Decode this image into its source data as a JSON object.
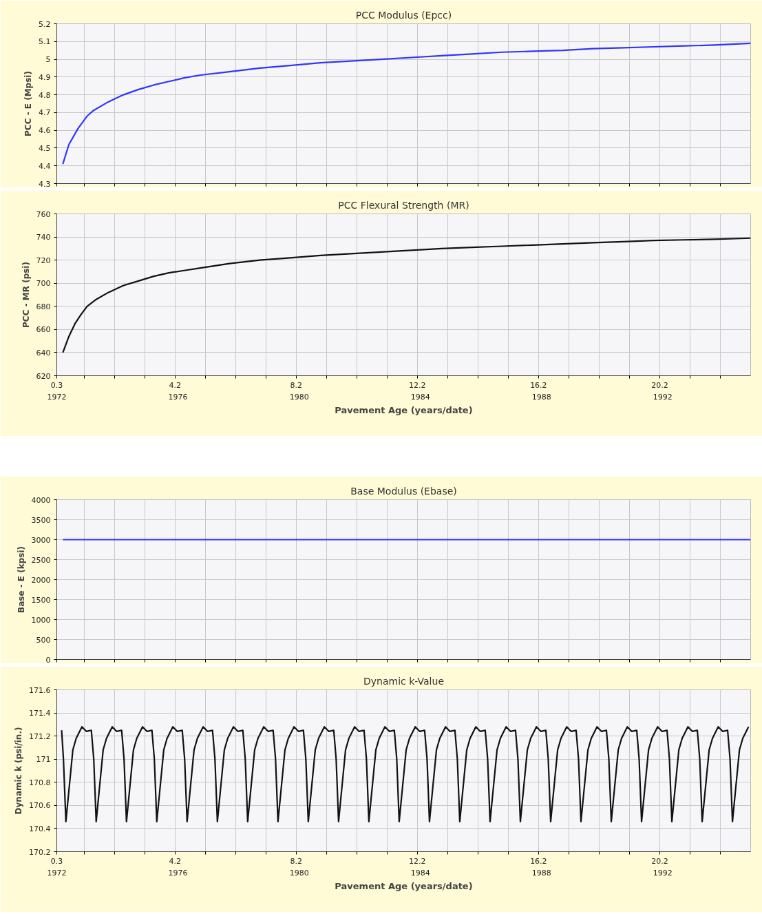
{
  "chart_data": [
    {
      "type": "line",
      "title": "PCC Modulus (Epcc)",
      "ylabel": "PCC - E (Mpsi)",
      "tick_labels": "y",
      "grid": true,
      "xlim": [
        0.3,
        23.2
      ],
      "ylim": [
        4.3,
        5.2
      ],
      "yticks": [
        4.3,
        4.4,
        4.5,
        4.6,
        4.7,
        4.8,
        4.9,
        5,
        5.1,
        5.2
      ],
      "xticks": [
        0.3,
        {
          "value": 1.2,
          "label": null
        },
        {
          "value": 2.2,
          "label": null
        },
        {
          "value": 3.2,
          "label": null
        },
        4.2,
        {
          "value": 5.2,
          "label": null
        },
        {
          "value": 6.2,
          "label": null
        },
        {
          "value": 7.2,
          "label": null
        },
        8.2,
        {
          "value": 9.2,
          "label": null
        },
        {
          "value": 10.2,
          "label": null
        },
        {
          "value": 11.2,
          "label": null
        },
        12.2,
        {
          "value": 13.2,
          "label": null
        },
        {
          "value": 14.2,
          "label": null
        },
        {
          "value": 15.2,
          "label": null
        },
        16.2,
        {
          "value": 17.2,
          "label": null
        },
        {
          "value": 18.2,
          "label": null
        },
        {
          "value": 19.2,
          "label": null
        },
        20.2,
        {
          "value": 21.2,
          "label": null
        },
        {
          "value": 22.2,
          "label": null
        }
      ],
      "x": [
        0.5,
        0.7,
        1.0,
        1.3,
        1.5,
        2.0,
        2.5,
        3.0,
        3.5,
        4.0,
        4.5,
        5.0,
        6,
        7,
        8,
        9,
        10,
        11,
        12,
        13,
        14,
        15,
        16,
        17,
        18,
        19,
        20,
        21,
        22,
        23.2
      ],
      "series": [
        {
          "color": "#3333ff",
          "values": [
            4.41,
            4.52,
            4.61,
            4.68,
            4.71,
            4.76,
            4.8,
            4.83,
            4.855,
            4.875,
            4.895,
            4.91,
            4.93,
            4.95,
            4.965,
            4.98,
            4.99,
            5.0,
            5.01,
            5.02,
            5.03,
            5.04,
            5.045,
            5.05,
            5.06,
            5.065,
            5.07,
            5.075,
            5.08,
            5.09
          ]
        }
      ]
    },
    {
      "type": "line",
      "title": "PCC Flexural Strength (MR)",
      "ylabel": "PCC - MR (psi)",
      "xlabel": "Pavement Age (years/date)",
      "grid": true,
      "xlim": [
        0.3,
        23.2
      ],
      "ylim": [
        620,
        760
      ],
      "yticks": [
        620,
        640,
        660,
        680,
        700,
        720,
        740,
        760
      ],
      "xticks": [
        0.3,
        {
          "value": 1.2,
          "label": null
        },
        {
          "value": 2.2,
          "label": null
        },
        {
          "value": 3.2,
          "label": null
        },
        4.2,
        {
          "value": 5.2,
          "label": null
        },
        {
          "value": 6.2,
          "label": null
        },
        {
          "value": 7.2,
          "label": null
        },
        8.2,
        {
          "value": 9.2,
          "label": null
        },
        {
          "value": 10.2,
          "label": null
        },
        {
          "value": 11.2,
          "label": null
        },
        12.2,
        {
          "value": 13.2,
          "label": null
        },
        {
          "value": 14.2,
          "label": null
        },
        {
          "value": 15.2,
          "label": null
        },
        16.2,
        {
          "value": 17.2,
          "label": null
        },
        {
          "value": 18.2,
          "label": null
        },
        {
          "value": 19.2,
          "label": null
        },
        20.2,
        {
          "value": 21.2,
          "label": null
        },
        {
          "value": 22.2,
          "label": null
        }
      ],
      "x2lim": [
        1972,
        1994.9
      ],
      "x2ticks": [
        1972,
        1976,
        1980,
        1984,
        1988,
        1992
      ],
      "x": [
        0.5,
        0.7,
        0.9,
        1.1,
        1.3,
        1.6,
        2.0,
        2.5,
        3.0,
        3.5,
        4.0,
        4.5,
        5.0,
        6,
        7,
        8,
        9,
        10,
        11,
        12,
        13,
        14,
        15,
        16,
        17,
        18,
        19,
        20,
        21,
        22,
        23.2
      ],
      "series": [
        {
          "color": "#111111",
          "values": [
            640,
            654,
            665,
            673,
            680,
            686,
            692,
            698,
            702,
            706,
            709,
            711,
            713,
            717,
            720,
            722,
            724,
            725.5,
            727,
            728.5,
            730,
            731,
            732,
            733,
            734,
            735,
            736,
            737,
            737.5,
            738,
            739
          ]
        }
      ]
    },
    {
      "type": "line",
      "title": "Base Modulus (Ebase)",
      "ylabel": "Base - E (kpsi)",
      "tick_labels": "y",
      "grid": true,
      "xlim": [
        0.3,
        23.2
      ],
      "ylim": [
        0,
        4000
      ],
      "yticks": [
        0,
        500,
        1000,
        1500,
        2000,
        2500,
        3000,
        3500,
        4000
      ],
      "xticks": [
        0.3,
        {
          "value": 1.2,
          "label": null
        },
        {
          "value": 2.2,
          "label": null
        },
        {
          "value": 3.2,
          "label": null
        },
        4.2,
        {
          "value": 5.2,
          "label": null
        },
        {
          "value": 6.2,
          "label": null
        },
        {
          "value": 7.2,
          "label": null
        },
        8.2,
        {
          "value": 9.2,
          "label": null
        },
        {
          "value": 10.2,
          "label": null
        },
        {
          "value": 11.2,
          "label": null
        },
        12.2,
        {
          "value": 13.2,
          "label": null
        },
        {
          "value": 14.2,
          "label": null
        },
        {
          "value": 15.2,
          "label": null
        },
        16.2,
        {
          "value": 17.2,
          "label": null
        },
        {
          "value": 18.2,
          "label": null
        },
        {
          "value": 19.2,
          "label": null
        },
        20.2,
        {
          "value": 21.2,
          "label": null
        },
        {
          "value": 22.2,
          "label": null
        }
      ],
      "x": [
        0.5,
        23.2
      ],
      "series": [
        {
          "color": "#3333ff",
          "values": [
            3000,
            3000
          ]
        }
      ]
    },
    {
      "type": "line",
      "title": "Dynamic k-Value",
      "ylabel": "Dynamic k (psi/in.)",
      "xlabel": "Pavement Age (years/date)",
      "grid": true,
      "xlim": [
        0.3,
        23.2
      ],
      "ylim": [
        170.2,
        171.6
      ],
      "yticks": [
        170.2,
        170.4,
        170.6,
        170.8,
        171,
        171.2,
        171.4,
        171.6
      ],
      "xticks": [
        0.3,
        {
          "value": 1.2,
          "label": null
        },
        {
          "value": 2.2,
          "label": null
        },
        {
          "value": 3.2,
          "label": null
        },
        4.2,
        {
          "value": 5.2,
          "label": null
        },
        {
          "value": 6.2,
          "label": null
        },
        {
          "value": 7.2,
          "label": null
        },
        8.2,
        {
          "value": 9.2,
          "label": null
        },
        {
          "value": 10.2,
          "label": null
        },
        {
          "value": 11.2,
          "label": null
        },
        12.2,
        {
          "value": 13.2,
          "label": null
        },
        {
          "value": 14.2,
          "label": null
        },
        {
          "value": 15.2,
          "label": null
        },
        16.2,
        {
          "value": 17.2,
          "label": null
        },
        {
          "value": 18.2,
          "label": null
        },
        {
          "value": 19.2,
          "label": null
        },
        20.2,
        {
          "value": 21.2,
          "label": null
        },
        {
          "value": 22.2,
          "label": null
        }
      ],
      "x2lim": [
        1972,
        1994.9
      ],
      "x2ticks": [
        1972,
        1976,
        1980,
        1984,
        1988,
        1992
      ],
      "x": [
        0.46,
        0.52,
        0.6,
        0.83,
        0.94,
        1.13,
        1.28,
        1.44,
        1.52,
        1.6,
        1.83,
        1.94,
        2.13,
        2.28,
        2.44,
        2.52,
        2.6,
        2.83,
        2.94,
        3.13,
        3.28,
        3.44,
        3.52,
        3.6,
        3.83,
        3.94,
        4.13,
        4.28,
        4.44,
        4.52,
        4.6,
        4.83,
        4.94,
        5.13,
        5.28,
        5.44,
        5.52,
        5.6,
        5.83,
        5.94,
        6.13,
        6.28,
        6.44,
        6.52,
        6.6,
        6.83,
        6.94,
        7.13,
        7.28,
        7.44,
        7.52,
        7.6,
        7.83,
        7.94,
        8.13,
        8.28,
        8.44,
        8.52,
        8.6,
        8.83,
        8.94,
        9.13,
        9.28,
        9.44,
        9.52,
        9.6,
        9.83,
        9.94,
        10.13,
        10.28,
        10.44,
        10.52,
        10.6,
        10.83,
        10.94,
        11.13,
        11.28,
        11.44,
        11.52,
        11.6,
        11.83,
        11.94,
        12.13,
        12.28,
        12.44,
        12.52,
        12.6,
        12.83,
        12.94,
        13.13,
        13.28,
        13.44,
        13.52,
        13.6,
        13.83,
        13.94,
        14.13,
        14.28,
        14.44,
        14.52,
        14.6,
        14.83,
        14.94,
        15.13,
        15.28,
        15.44,
        15.52,
        15.6,
        15.83,
        15.94,
        16.13,
        16.28,
        16.44,
        16.52,
        16.6,
        16.83,
        16.94,
        17.13,
        17.28,
        17.44,
        17.52,
        17.6,
        17.83,
        17.94,
        18.13,
        18.28,
        18.44,
        18.52,
        18.6,
        18.83,
        18.94,
        19.13,
        19.28,
        19.44,
        19.52,
        19.6,
        19.83,
        19.94,
        20.13,
        20.28,
        20.44,
        20.52,
        20.6,
        20.83,
        20.94,
        21.13,
        21.28,
        21.44,
        21.52,
        21.6,
        21.83,
        21.94,
        22.13,
        22.28,
        22.44,
        22.52,
        22.6,
        22.83,
        22.94,
        23.13
      ],
      "series": [
        {
          "color": "#111111",
          "values": [
            171.25,
            171.0,
            170.46,
            171.08,
            171.18,
            171.28,
            171.24,
            171.25,
            171.0,
            170.46,
            171.08,
            171.18,
            171.28,
            171.24,
            171.25,
            171.0,
            170.46,
            171.08,
            171.18,
            171.28,
            171.24,
            171.25,
            171.0,
            170.46,
            171.08,
            171.18,
            171.28,
            171.24,
            171.25,
            171.0,
            170.46,
            171.08,
            171.18,
            171.28,
            171.24,
            171.25,
            171.0,
            170.46,
            171.08,
            171.18,
            171.28,
            171.24,
            171.25,
            171.0,
            170.46,
            171.08,
            171.18,
            171.28,
            171.24,
            171.25,
            171.0,
            170.46,
            171.08,
            171.18,
            171.28,
            171.24,
            171.25,
            171.0,
            170.46,
            171.08,
            171.18,
            171.28,
            171.24,
            171.25,
            171.0,
            170.46,
            171.08,
            171.18,
            171.28,
            171.24,
            171.25,
            171.0,
            170.46,
            171.08,
            171.18,
            171.28,
            171.24,
            171.25,
            171.0,
            170.46,
            171.08,
            171.18,
            171.28,
            171.24,
            171.25,
            171.0,
            170.46,
            171.08,
            171.18,
            171.28,
            171.24,
            171.25,
            171.0,
            170.46,
            171.08,
            171.18,
            171.28,
            171.24,
            171.25,
            171.0,
            170.46,
            171.08,
            171.18,
            171.28,
            171.24,
            171.25,
            171.0,
            170.46,
            171.08,
            171.18,
            171.28,
            171.24,
            171.25,
            171.0,
            170.46,
            171.08,
            171.18,
            171.28,
            171.24,
            171.25,
            171.0,
            170.46,
            171.08,
            171.18,
            171.28,
            171.24,
            171.25,
            171.0,
            170.46,
            171.08,
            171.18,
            171.28,
            171.24,
            171.25,
            171.0,
            170.46,
            171.08,
            171.18,
            171.28,
            171.24,
            171.25,
            171.0,
            170.46,
            171.08,
            171.18,
            171.28,
            171.24,
            171.25,
            171.0,
            170.46,
            171.08,
            171.18,
            171.28,
            171.24,
            171.25,
            171.0,
            170.46,
            171.08,
            171.18,
            171.28
          ]
        }
      ]
    }
  ]
}
